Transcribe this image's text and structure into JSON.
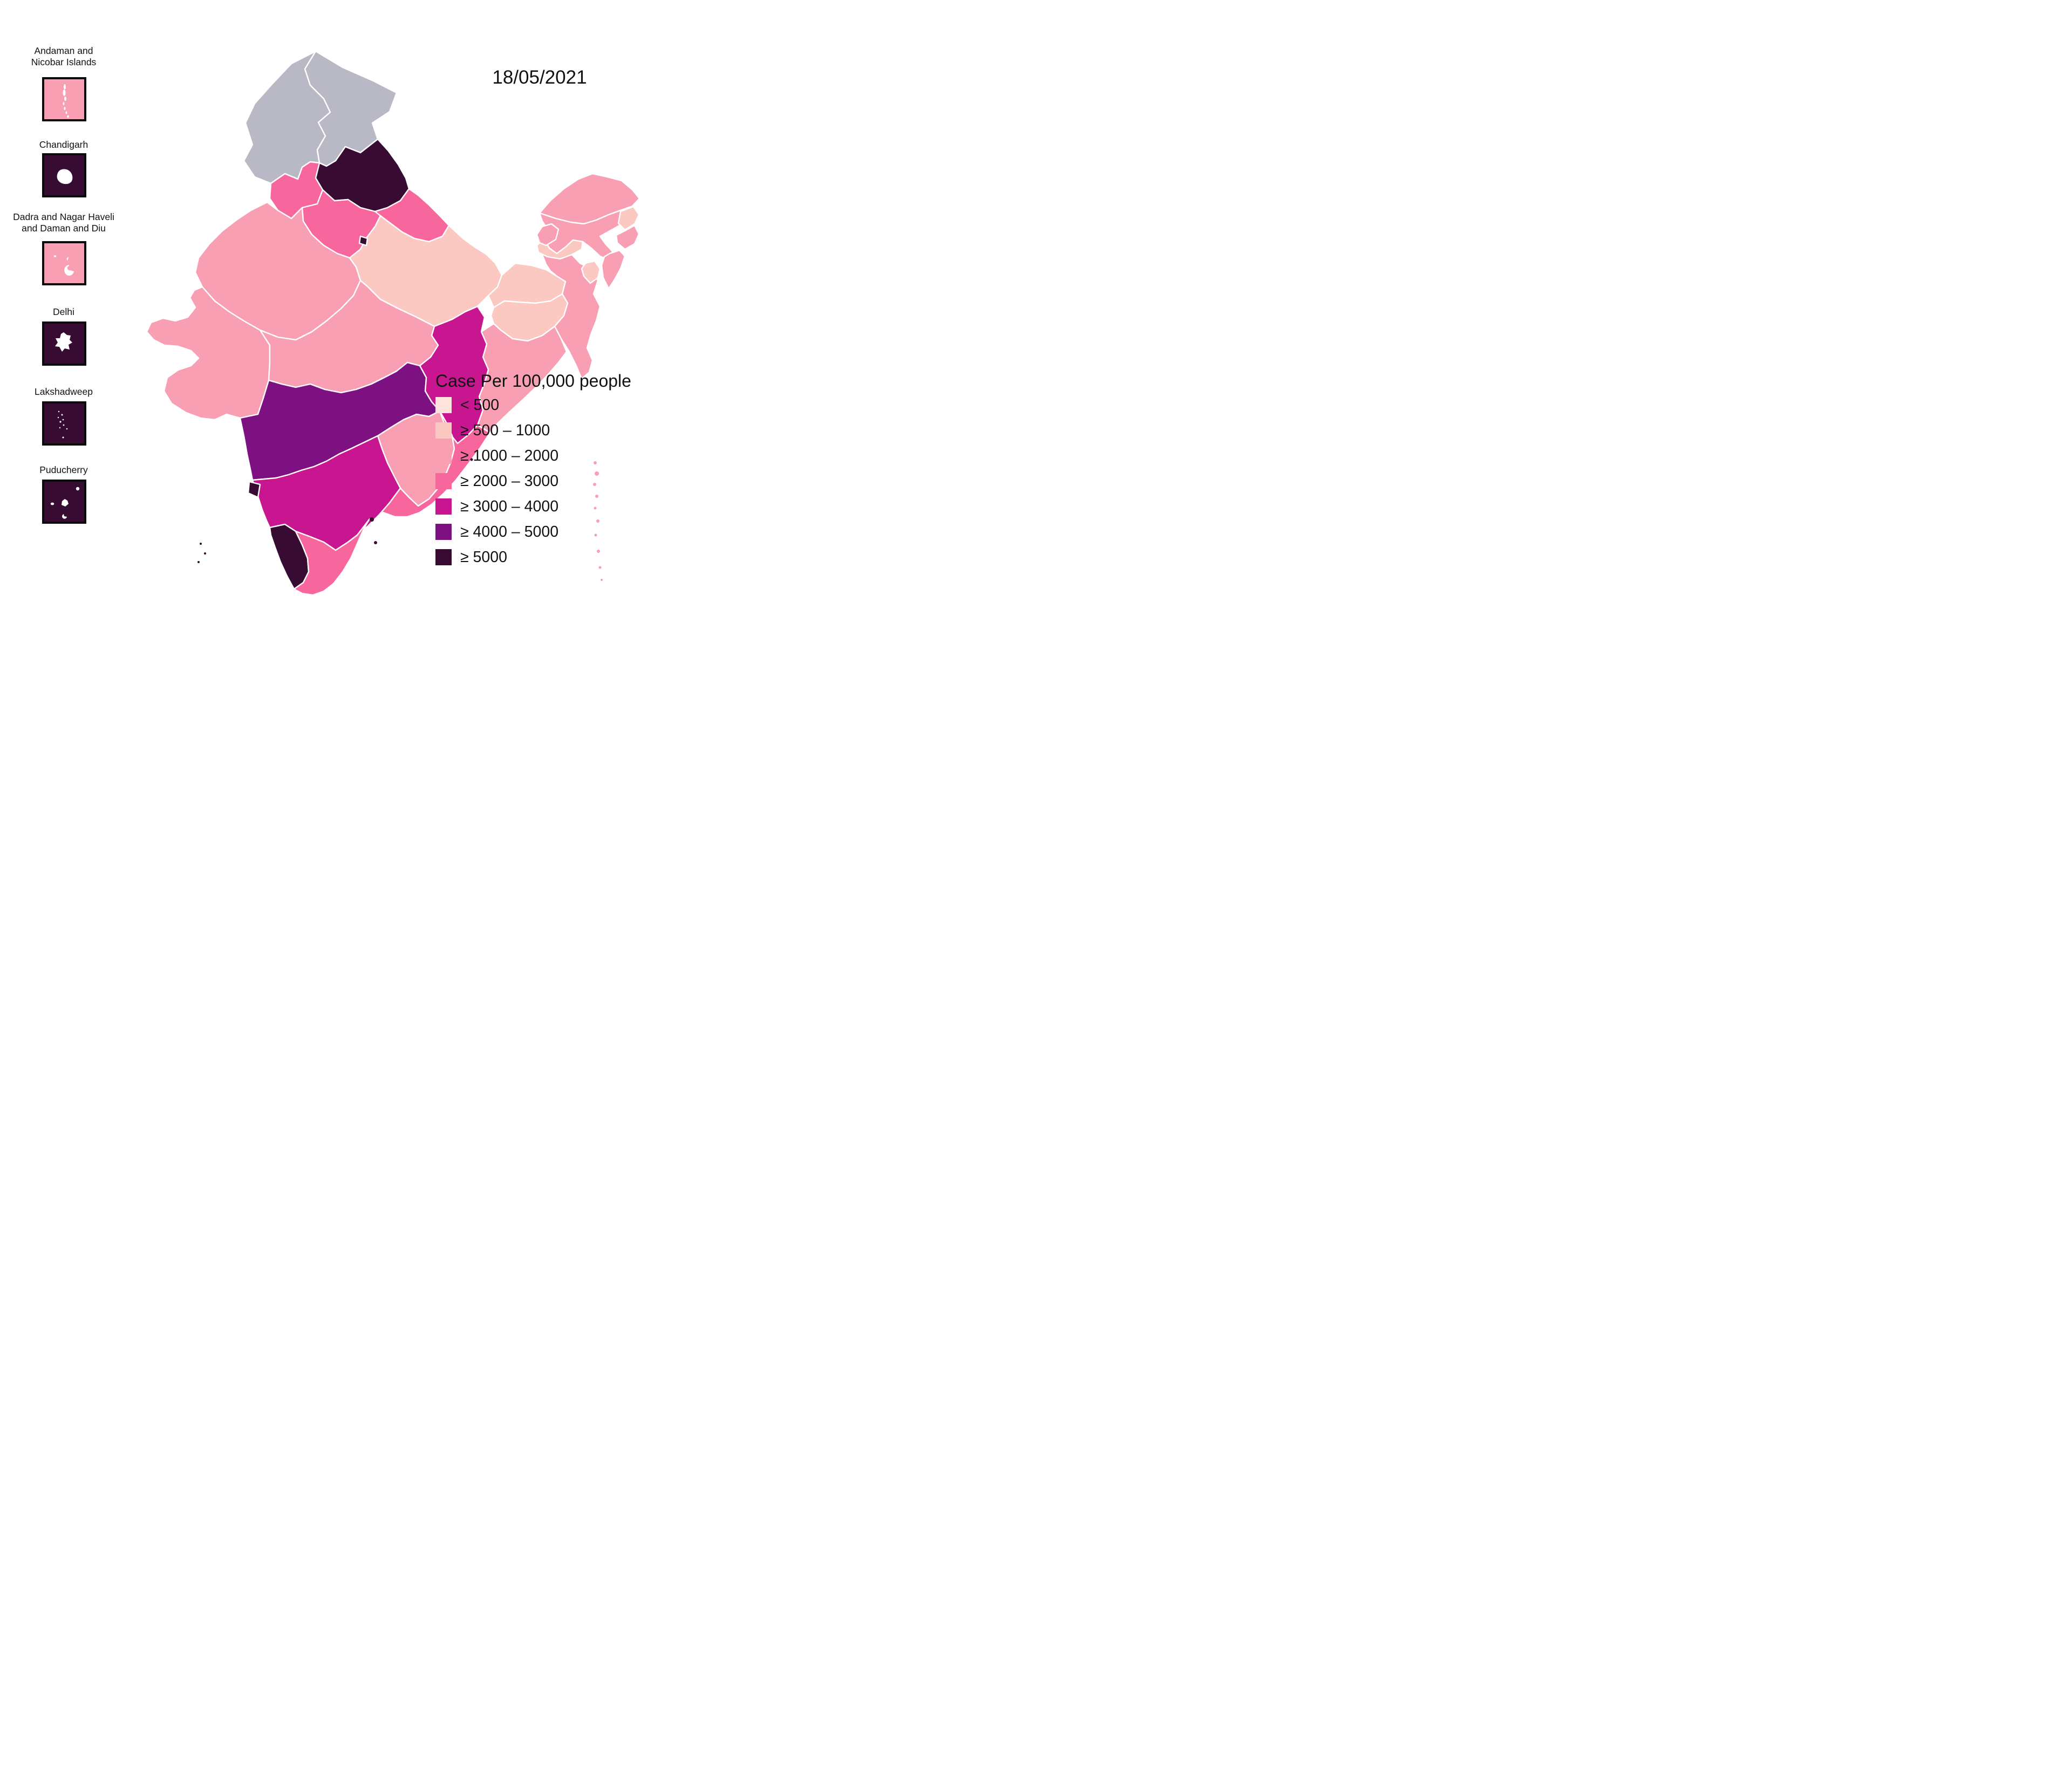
{
  "date_label": "18/05/2021",
  "legend": {
    "title": "Case Per 100,000 people",
    "entries": [
      {
        "key": "lt500",
        "label": "< 500",
        "color": "#fde3dc"
      },
      {
        "key": "500-1000",
        "label": "≥ 500 – 1000",
        "color": "#fbc9c2"
      },
      {
        "key": "1000-2000",
        "label": "≥ 1000 – 2000",
        "color": "#f89fb4"
      },
      {
        "key": "2000-3000",
        "label": "≥ 2000 – 3000",
        "color": "#f7679e"
      },
      {
        "key": "3000-4000",
        "label": "≥ 3000 – 4000",
        "color": "#c81590"
      },
      {
        "key": "4000-5000",
        "label": "≥ 4000 – 5000",
        "color": "#7e1182"
      },
      {
        "key": "gte5000",
        "label": "≥ 5000",
        "color": "#380b32"
      }
    ]
  },
  "insets": [
    {
      "id": "andaman-nicobar",
      "lines": [
        "Andaman and",
        "Nicobar Islands"
      ],
      "category": "1000-2000"
    },
    {
      "id": "chandigarh",
      "lines": [
        "Chandigarh"
      ],
      "category": "gte5000"
    },
    {
      "id": "dadra-daman",
      "lines": [
        "Dadra and Nagar Haveli",
        "and Daman and Diu"
      ],
      "category": "1000-2000"
    },
    {
      "id": "delhi",
      "lines": [
        "Delhi"
      ],
      "category": "gte5000"
    },
    {
      "id": "lakshadweep",
      "lines": [
        "Lakshadweep"
      ],
      "category": "gte5000"
    },
    {
      "id": "puducherry",
      "lines": [
        "Puducherry"
      ],
      "category": "gte5000"
    }
  ],
  "map": {
    "no_data_color": "#b9b9c6",
    "states": [
      {
        "id": "jammu-kashmir",
        "label": "Jammu and Kashmir",
        "category": "no-data"
      },
      {
        "id": "ladakh",
        "label": "Ladakh",
        "category": "no-data"
      },
      {
        "id": "himachal-pradesh",
        "label": "Himachal Pradesh",
        "category": "gte5000"
      },
      {
        "id": "punjab",
        "label": "Punjab",
        "category": "2000-3000"
      },
      {
        "id": "uttarakhand",
        "label": "Uttarakhand",
        "category": "2000-3000"
      },
      {
        "id": "haryana",
        "label": "Haryana",
        "category": "2000-3000"
      },
      {
        "id": "delhi",
        "label": "Delhi",
        "category": "gte5000"
      },
      {
        "id": "rajasthan",
        "label": "Rajasthan",
        "category": "1000-2000"
      },
      {
        "id": "uttar-pradesh",
        "label": "Uttar Pradesh",
        "category": "500-1000"
      },
      {
        "id": "bihar",
        "label": "Bihar",
        "category": "500-1000"
      },
      {
        "id": "sikkim",
        "label": "Sikkim",
        "category": "1000-2000"
      },
      {
        "id": "west-bengal",
        "label": "West Bengal",
        "category": "1000-2000"
      },
      {
        "id": "jharkhand",
        "label": "Jharkhand",
        "category": "500-1000"
      },
      {
        "id": "odisha",
        "label": "Odisha",
        "category": "1000-2000"
      },
      {
        "id": "chhattisgarh",
        "label": "Chhattisgarh",
        "category": "3000-4000"
      },
      {
        "id": "gujarat",
        "label": "Gujarat",
        "category": "1000-2000"
      },
      {
        "id": "madhya-pradesh",
        "label": "Madhya Pradesh",
        "category": "1000-2000"
      },
      {
        "id": "maharashtra",
        "label": "Maharashtra",
        "category": "4000-5000"
      },
      {
        "id": "telangana",
        "label": "Telangana",
        "category": "1000-2000"
      },
      {
        "id": "andhra-pradesh",
        "label": "Andhra Pradesh",
        "category": "2000-3000"
      },
      {
        "id": "karnataka",
        "label": "Karnataka",
        "category": "3000-4000"
      },
      {
        "id": "goa",
        "label": "Goa",
        "category": "gte5000"
      },
      {
        "id": "kerala",
        "label": "Kerala",
        "category": "gte5000"
      },
      {
        "id": "tamil-nadu",
        "label": "Tamil Nadu",
        "category": "2000-3000"
      },
      {
        "id": "arunachal-pradesh",
        "label": "Arunachal Pradesh",
        "category": "1000-2000"
      },
      {
        "id": "assam",
        "label": "Assam",
        "category": "1000-2000"
      },
      {
        "id": "nagaland",
        "label": "Nagaland",
        "category": "500-1000"
      },
      {
        "id": "manipur",
        "label": "Manipur",
        "category": "1000-2000"
      },
      {
        "id": "mizoram",
        "label": "Mizoram",
        "category": "1000-2000"
      },
      {
        "id": "tripura",
        "label": "Tripura",
        "category": "500-1000"
      },
      {
        "id": "meghalaya",
        "label": "Meghalaya",
        "category": "500-1000"
      }
    ],
    "islands": [
      {
        "id": "andaman-nicobar-islands",
        "label": "Andaman and Nicobar Islands",
        "category": "1000-2000"
      },
      {
        "id": "lakshadweep-islands",
        "label": "Lakshadweep",
        "category": "gte5000"
      },
      {
        "id": "puducherry-enclaves",
        "label": "Puducherry",
        "category": "gte5000"
      }
    ]
  }
}
